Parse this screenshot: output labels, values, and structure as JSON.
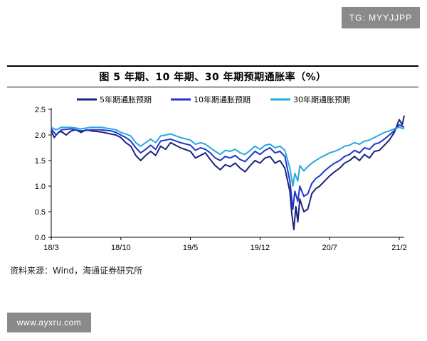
{
  "watermarks": {
    "top": "TG: MYYJJPP",
    "bottom": "www.ayxru.com"
  },
  "chart_data": {
    "type": "line",
    "title": "图  5 年期、10 年期、30 年期预期通胀率（%）",
    "xlabel": "",
    "ylabel": "",
    "ylim": [
      0,
      2.5
    ],
    "yticks": [
      "0.0",
      "0.5",
      "1.0",
      "1.5",
      "2.0",
      "2.5"
    ],
    "x_ticks": [
      "18/3",
      "18/10",
      "19/5",
      "19/12",
      "20/7",
      "21/2"
    ],
    "x_tick_positions": [
      0,
      7,
      14,
      21,
      28,
      35
    ],
    "x_range": [
      0,
      35.5
    ],
    "legend_position": "top",
    "series": [
      {
        "name": "5年期通胀预期",
        "color": "#1a237e",
        "points": [
          [
            0,
            2.08
          ],
          [
            0.3,
            1.95
          ],
          [
            0.7,
            2.05
          ],
          [
            1,
            2.07
          ],
          [
            1.5,
            2.0
          ],
          [
            2,
            2.08
          ],
          [
            2.5,
            2.1
          ],
          [
            3,
            2.05
          ],
          [
            3.5,
            2.1
          ],
          [
            4,
            2.08
          ],
          [
            5,
            2.06
          ],
          [
            6,
            2.02
          ],
          [
            6.5,
            2.0
          ],
          [
            7,
            1.95
          ],
          [
            7.5,
            1.85
          ],
          [
            8,
            1.78
          ],
          [
            8.5,
            1.6
          ],
          [
            9,
            1.5
          ],
          [
            9.5,
            1.6
          ],
          [
            10,
            1.68
          ],
          [
            10.5,
            1.6
          ],
          [
            11,
            1.78
          ],
          [
            11.5,
            1.72
          ],
          [
            12,
            1.85
          ],
          [
            12.5,
            1.8
          ],
          [
            13,
            1.75
          ],
          [
            14,
            1.68
          ],
          [
            14.5,
            1.55
          ],
          [
            15,
            1.6
          ],
          [
            15.5,
            1.65
          ],
          [
            16,
            1.52
          ],
          [
            16.5,
            1.4
          ],
          [
            17,
            1.32
          ],
          [
            17.5,
            1.42
          ],
          [
            18,
            1.38
          ],
          [
            18.5,
            1.45
          ],
          [
            19,
            1.35
          ],
          [
            19.5,
            1.28
          ],
          [
            20,
            1.4
          ],
          [
            20.5,
            1.5
          ],
          [
            21,
            1.45
          ],
          [
            21.5,
            1.55
          ],
          [
            22,
            1.58
          ],
          [
            22.5,
            1.45
          ],
          [
            23,
            1.5
          ],
          [
            23.5,
            1.35
          ],
          [
            24,
            0.9
          ],
          [
            24.2,
            0.45
          ],
          [
            24.4,
            0.15
          ],
          [
            24.6,
            0.6
          ],
          [
            24.8,
            0.3
          ],
          [
            25,
            0.75
          ],
          [
            25.4,
            0.5
          ],
          [
            25.8,
            0.55
          ],
          [
            26.2,
            0.85
          ],
          [
            26.6,
            0.95
          ],
          [
            27,
            1.0
          ],
          [
            27.5,
            1.1
          ],
          [
            28,
            1.2
          ],
          [
            28.5,
            1.28
          ],
          [
            29,
            1.35
          ],
          [
            29.5,
            1.45
          ],
          [
            30,
            1.5
          ],
          [
            30.5,
            1.58
          ],
          [
            31,
            1.5
          ],
          [
            31.5,
            1.62
          ],
          [
            32,
            1.55
          ],
          [
            32.5,
            1.68
          ],
          [
            33,
            1.7
          ],
          [
            33.5,
            1.8
          ],
          [
            34,
            1.9
          ],
          [
            34.5,
            2.05
          ],
          [
            35,
            2.3
          ],
          [
            35.3,
            2.2
          ],
          [
            35.5,
            2.38
          ]
        ]
      },
      {
        "name": "10年期通胀预期",
        "color": "#2136c8",
        "points": [
          [
            0,
            2.12
          ],
          [
            0.5,
            2.0
          ],
          [
            1,
            2.1
          ],
          [
            2,
            2.12
          ],
          [
            3,
            2.08
          ],
          [
            4,
            2.1
          ],
          [
            5,
            2.1
          ],
          [
            6,
            2.08
          ],
          [
            6.5,
            2.05
          ],
          [
            7,
            2.0
          ],
          [
            7.5,
            1.95
          ],
          [
            8,
            1.88
          ],
          [
            8.5,
            1.75
          ],
          [
            9,
            1.65
          ],
          [
            9.5,
            1.72
          ],
          [
            10,
            1.8
          ],
          [
            10.5,
            1.72
          ],
          [
            11,
            1.88
          ],
          [
            12,
            1.92
          ],
          [
            13,
            1.85
          ],
          [
            14,
            1.8
          ],
          [
            14.5,
            1.7
          ],
          [
            15,
            1.75
          ],
          [
            15.5,
            1.72
          ],
          [
            16,
            1.65
          ],
          [
            16.5,
            1.55
          ],
          [
            17,
            1.5
          ],
          [
            17.5,
            1.58
          ],
          [
            18,
            1.55
          ],
          [
            18.5,
            1.6
          ],
          [
            19,
            1.52
          ],
          [
            19.5,
            1.48
          ],
          [
            20,
            1.58
          ],
          [
            20.5,
            1.68
          ],
          [
            21,
            1.62
          ],
          [
            21.5,
            1.7
          ],
          [
            22,
            1.75
          ],
          [
            22.5,
            1.65
          ],
          [
            23,
            1.68
          ],
          [
            23.5,
            1.58
          ],
          [
            24,
            1.1
          ],
          [
            24.3,
            0.55
          ],
          [
            24.5,
            0.9
          ],
          [
            24.8,
            0.7
          ],
          [
            25,
            1.0
          ],
          [
            25.4,
            0.8
          ],
          [
            25.8,
            0.85
          ],
          [
            26.2,
            1.05
          ],
          [
            26.6,
            1.15
          ],
          [
            27,
            1.2
          ],
          [
            27.5,
            1.3
          ],
          [
            28,
            1.38
          ],
          [
            28.5,
            1.45
          ],
          [
            29,
            1.5
          ],
          [
            29.5,
            1.58
          ],
          [
            30,
            1.62
          ],
          [
            30.5,
            1.7
          ],
          [
            31,
            1.65
          ],
          [
            31.5,
            1.75
          ],
          [
            32,
            1.72
          ],
          [
            32.5,
            1.82
          ],
          [
            33,
            1.85
          ],
          [
            33.5,
            1.92
          ],
          [
            34,
            2.0
          ],
          [
            34.5,
            2.08
          ],
          [
            35,
            2.2
          ],
          [
            35.5,
            2.15
          ]
        ]
      },
      {
        "name": "30年期通胀预期",
        "color": "#26a9e0",
        "points": [
          [
            0,
            2.15
          ],
          [
            0.5,
            2.1
          ],
          [
            1,
            2.15
          ],
          [
            2,
            2.15
          ],
          [
            3,
            2.12
          ],
          [
            4,
            2.15
          ],
          [
            5,
            2.15
          ],
          [
            6,
            2.12
          ],
          [
            6.5,
            2.1
          ],
          [
            7,
            2.05
          ],
          [
            7.5,
            2.02
          ],
          [
            8,
            1.98
          ],
          [
            8.5,
            1.85
          ],
          [
            9,
            1.78
          ],
          [
            9.5,
            1.85
          ],
          [
            10,
            1.92
          ],
          [
            10.5,
            1.85
          ],
          [
            11,
            1.98
          ],
          [
            12,
            2.02
          ],
          [
            13,
            1.95
          ],
          [
            14,
            1.9
          ],
          [
            14.5,
            1.82
          ],
          [
            15,
            1.85
          ],
          [
            15.5,
            1.82
          ],
          [
            16,
            1.75
          ],
          [
            16.5,
            1.68
          ],
          [
            17,
            1.62
          ],
          [
            17.5,
            1.7
          ],
          [
            18,
            1.68
          ],
          [
            18.5,
            1.72
          ],
          [
            19,
            1.65
          ],
          [
            19.5,
            1.62
          ],
          [
            20,
            1.7
          ],
          [
            20.5,
            1.78
          ],
          [
            21,
            1.72
          ],
          [
            21.5,
            1.8
          ],
          [
            22,
            1.82
          ],
          [
            22.5,
            1.75
          ],
          [
            23,
            1.78
          ],
          [
            23.5,
            1.7
          ],
          [
            24,
            1.35
          ],
          [
            24.3,
            1.0
          ],
          [
            24.5,
            1.25
          ],
          [
            24.8,
            1.1
          ],
          [
            25,
            1.4
          ],
          [
            25.4,
            1.3
          ],
          [
            25.8,
            1.38
          ],
          [
            26.2,
            1.45
          ],
          [
            26.6,
            1.5
          ],
          [
            27,
            1.55
          ],
          [
            27.5,
            1.6
          ],
          [
            28,
            1.65
          ],
          [
            28.5,
            1.68
          ],
          [
            29,
            1.72
          ],
          [
            29.5,
            1.78
          ],
          [
            30,
            1.8
          ],
          [
            30.5,
            1.85
          ],
          [
            31,
            1.82
          ],
          [
            31.5,
            1.88
          ],
          [
            32,
            1.9
          ],
          [
            32.5,
            1.95
          ],
          [
            33,
            2.0
          ],
          [
            33.5,
            2.05
          ],
          [
            34,
            2.08
          ],
          [
            34.5,
            2.12
          ],
          [
            35,
            2.15
          ],
          [
            35.5,
            2.12
          ]
        ]
      }
    ]
  },
  "source": "资料来源：Wind，海通证券研究所"
}
